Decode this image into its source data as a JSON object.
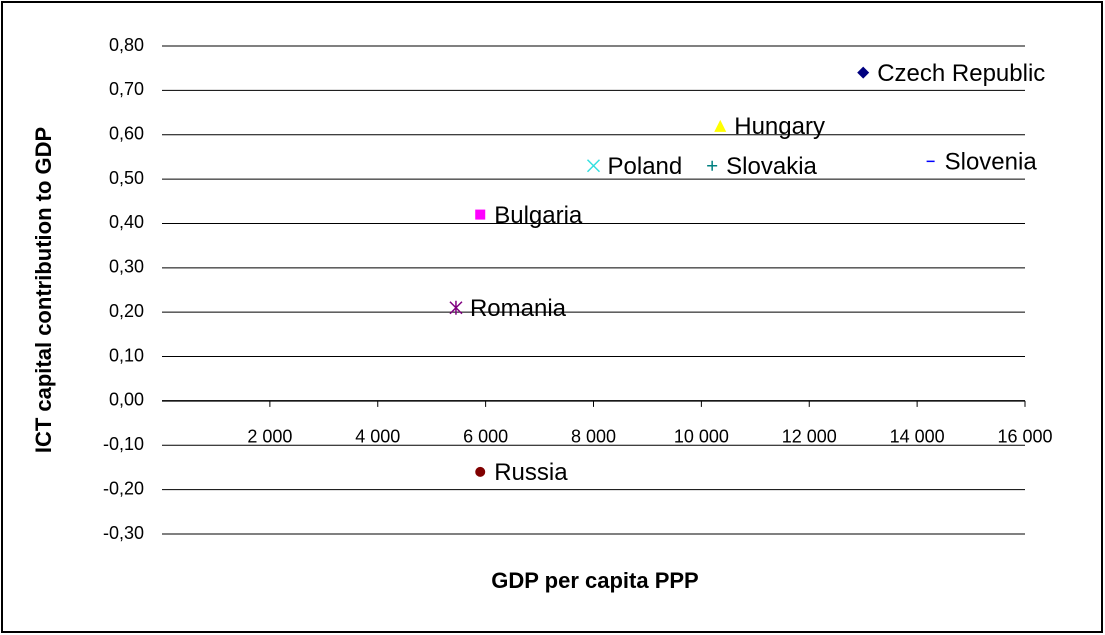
{
  "chart_data": {
    "type": "scatter",
    "xlabel": "GDP per capita PPP",
    "ylabel": "ICT capital contribution to GDP",
    "xlim": [
      0,
      16000
    ],
    "ylim": [
      -0.3,
      0.8
    ],
    "xticks": [
      {
        "value": 2000,
        "label": "2 000"
      },
      {
        "value": 4000,
        "label": "4 000"
      },
      {
        "value": 6000,
        "label": "6 000"
      },
      {
        "value": 8000,
        "label": "8 000"
      },
      {
        "value": 10000,
        "label": "10 000"
      },
      {
        "value": 12000,
        "label": "12 000"
      },
      {
        "value": 14000,
        "label": "14 000"
      },
      {
        "value": 16000,
        "label": "16 000"
      }
    ],
    "yticks": [
      {
        "value": -0.3,
        "label": "-0,30"
      },
      {
        "value": -0.2,
        "label": "-0,20"
      },
      {
        "value": -0.1,
        "label": "-0,10"
      },
      {
        "value": 0,
        "label": "0,00"
      },
      {
        "value": 0.1,
        "label": "0,10"
      },
      {
        "value": 0.2,
        "label": "0,20"
      },
      {
        "value": 0.3,
        "label": "0,30"
      },
      {
        "value": 0.4,
        "label": "0,40"
      },
      {
        "value": 0.5,
        "label": "0,50"
      },
      {
        "value": 0.6,
        "label": "0,60"
      },
      {
        "value": 0.7,
        "label": "0,70"
      },
      {
        "value": 0.8,
        "label": "0,80"
      }
    ],
    "grid": true,
    "series": [
      {
        "name": "Czech Republic",
        "color": "#000080",
        "marker": "diamond",
        "x": [
          13000
        ],
        "values": [
          0.74
        ]
      },
      {
        "name": "Hungary",
        "color": "#ffff00",
        "marker": "triangle",
        "x": [
          10350
        ],
        "values": [
          0.62
        ]
      },
      {
        "name": "Poland",
        "color": "#33e0e0",
        "marker": "x",
        "x": [
          8000
        ],
        "values": [
          0.53
        ]
      },
      {
        "name": "Slovakia",
        "color": "#008080",
        "marker": "plus",
        "x": [
          10200
        ],
        "values": [
          0.53
        ]
      },
      {
        "name": "Slovenia",
        "color": "#0000ff",
        "marker": "dash",
        "x": [
          14250
        ],
        "values": [
          0.54
        ]
      },
      {
        "name": "Bulgaria",
        "color": "#ff00ff",
        "marker": "square",
        "x": [
          5900
        ],
        "values": [
          0.42
        ]
      },
      {
        "name": "Romania",
        "color": "#800080",
        "marker": "star",
        "x": [
          5450
        ],
        "values": [
          0.21
        ]
      },
      {
        "name": "Russia",
        "color": "#800000",
        "marker": "circle",
        "x": [
          5900
        ],
        "values": [
          -0.16
        ]
      }
    ]
  }
}
